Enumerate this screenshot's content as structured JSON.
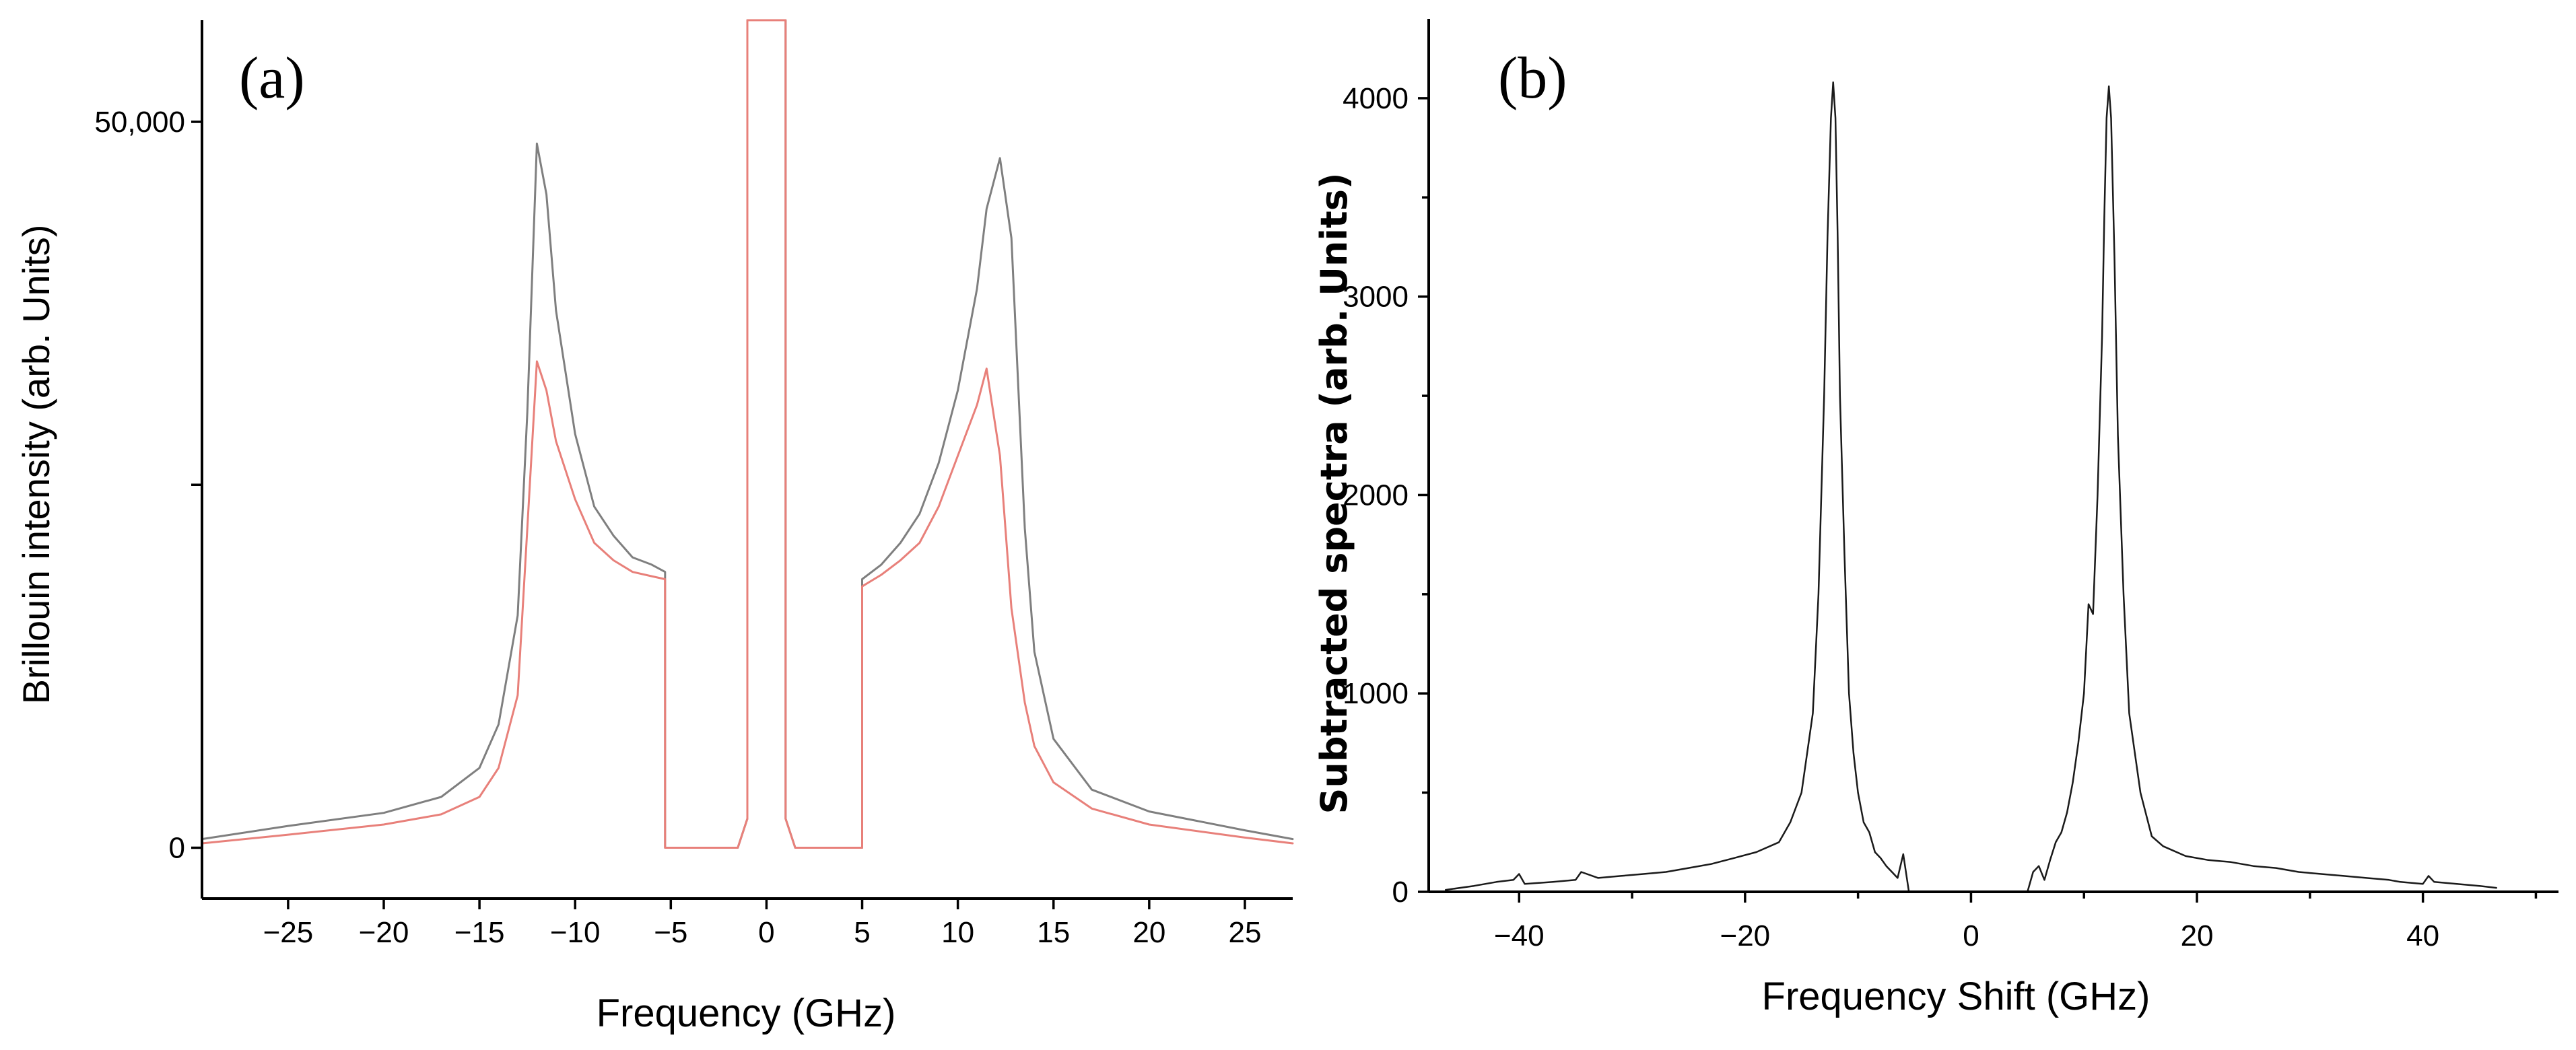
{
  "chart_data": [
    {
      "type": "line",
      "panel_label": "(a)",
      "xlabel": "Frequency (GHz)",
      "ylabel": "Brillouin intensity (arb. Units)",
      "xlim": [
        -29.5,
        27.5
      ],
      "ylim": [
        -3500,
        57000
      ],
      "x_ticks": [
        -25,
        -20,
        -15,
        -10,
        -5,
        0,
        5,
        10,
        15,
        20,
        25
      ],
      "x_tick_labels": [
        "−25",
        "−20",
        "−15",
        "−10",
        "−5",
        "0",
        "5",
        "10",
        "15",
        "20",
        "25"
      ],
      "y_ticks": [
        0,
        25000,
        50000
      ],
      "y_tick_labels": [
        "0",
        "",
        "50,000"
      ],
      "grid": false,
      "series": [
        {
          "name": "gray",
          "color": "#7f7f7f",
          "x": [
            -29.5,
            -25,
            -20,
            -17,
            -15,
            -14,
            -13,
            -12.5,
            -12,
            -11.5,
            -11,
            -10,
            -9,
            -8,
            -7,
            -6,
            -5.3,
            -5.3,
            -1.5,
            -1.0,
            -1.0,
            1.0,
            1.0,
            1.5,
            5.0,
            5.0,
            6,
            7,
            8,
            9,
            10,
            11,
            11.5,
            12.2,
            12.8,
            13.5,
            14,
            15,
            17,
            20,
            25,
            27.5
          ],
          "y": [
            600,
            1500,
            2400,
            3500,
            5500,
            8500,
            16000,
            30000,
            48500,
            45000,
            37000,
            28500,
            23500,
            21500,
            20000,
            19500,
            19000,
            0,
            0,
            2000,
            57000,
            57000,
            2000,
            0,
            0,
            18500,
            19500,
            21000,
            23000,
            26500,
            31500,
            38500,
            44000,
            47500,
            42000,
            22000,
            13500,
            7500,
            4000,
            2500,
            1200,
            600
          ]
        },
        {
          "name": "red",
          "color": "#e8807a",
          "x": [
            -29.5,
            -25,
            -20,
            -17,
            -15,
            -14,
            -13,
            -12.5,
            -12,
            -11.5,
            -11,
            -10,
            -9,
            -8,
            -7,
            -6,
            -5.3,
            -5.3,
            -1.5,
            -1.0,
            -1.0,
            1.0,
            1.0,
            1.5,
            5.0,
            5.0,
            6,
            7,
            8,
            9,
            10,
            11,
            11.5,
            12.2,
            12.8,
            13.5,
            14,
            15,
            17,
            20,
            25,
            27.5
          ],
          "y": [
            300,
            900,
            1600,
            2300,
            3500,
            5500,
            10500,
            22000,
            33500,
            31500,
            28000,
            24000,
            21000,
            19800,
            19000,
            18700,
            18500,
            0,
            0,
            2000,
            57000,
            57000,
            2000,
            0,
            0,
            18000,
            18800,
            19800,
            21000,
            23500,
            27000,
            30500,
            33000,
            27000,
            16500,
            10000,
            7000,
            4500,
            2700,
            1600,
            700,
            300
          ]
        }
      ]
    },
    {
      "type": "line",
      "panel_label": "(b)",
      "xlabel": "Frequency Shift (GHz)",
      "ylabel": "Subtracted spectra (arb. Units)",
      "xlim": [
        -48,
        52
      ],
      "ylim": [
        0,
        4400
      ],
      "x_ticks": [
        -40,
        -20,
        0,
        20,
        40
      ],
      "x_tick_labels": [
        "−40",
        "−20",
        "0",
        "20",
        "40"
      ],
      "y_ticks": [
        0,
        1000,
        2000,
        3000,
        4000
      ],
      "y_tick_labels": [
        "0",
        "1000",
        "2000",
        "3000",
        "4000"
      ],
      "grid": false,
      "series": [
        {
          "name": "difference",
          "color": "#1a1a1a",
          "segments": [
            {
              "x": [
                -46.5,
                -44,
                -42,
                -40.5,
                -40,
                -39.5,
                -37,
                -35,
                -34.5,
                -33,
                -31,
                -29,
                -27,
                -25,
                -23,
                -21,
                -19,
                -17,
                -16,
                -15,
                -14,
                -13.5,
                -13,
                -12.7,
                -12.4,
                -12.2,
                -12.0,
                -11.8,
                -11.6,
                -11.2,
                -10.8,
                -10.4,
                -10,
                -9.5,
                -9,
                -8.5,
                -8,
                -7.5,
                -7,
                -6.5,
                -6,
                -5.5
              ],
              "y": [
                10,
                30,
                50,
                60,
                90,
                40,
                50,
                60,
                100,
                70,
                80,
                90,
                100,
                120,
                140,
                170,
                200,
                250,
                350,
                500,
                900,
                1500,
                2500,
                3300,
                3900,
                4080,
                3900,
                3300,
                2500,
                1700,
                1000,
                700,
                500,
                350,
                300,
                200,
                170,
                130,
                100,
                70,
                190,
                0
              ]
            },
            {
              "x": [
                5.0,
                5.5,
                6,
                6.5,
                7,
                7.5,
                8,
                8.5,
                9,
                9.5,
                10,
                10.4,
                10.8,
                11.2,
                11.6,
                11.8,
                12.0,
                12.2,
                12.4,
                12.7,
                13.0,
                13.5,
                14,
                15,
                16,
                17,
                19,
                21,
                23,
                25,
                27,
                29,
                31,
                33,
                35,
                37,
                38,
                40,
                40.5,
                41,
                43,
                45,
                46.5
              ],
              "y": [
                0,
                100,
                130,
                60,
                160,
                250,
                300,
                400,
                550,
                750,
                1000,
                1450,
                1400,
                2000,
                2800,
                3400,
                3900,
                4060,
                3900,
                3200,
                2300,
                1500,
                900,
                500,
                280,
                230,
                180,
                160,
                150,
                130,
                120,
                100,
                90,
                80,
                70,
                60,
                50,
                40,
                80,
                50,
                40,
                30,
                20
              ]
            }
          ]
        }
      ]
    }
  ]
}
